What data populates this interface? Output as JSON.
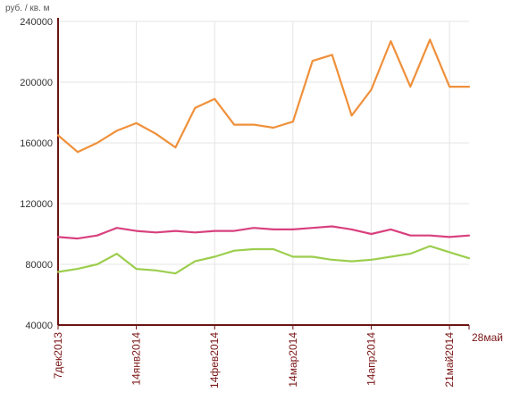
{
  "chart_data": {
    "type": "line",
    "unit_label": "руб. / кв. м",
    "y_ticks": [
      "240000",
      "200000",
      "160000",
      "120000",
      "80000",
      "40000"
    ],
    "y_tick_values": [
      240000,
      200000,
      160000,
      120000,
      80000,
      40000
    ],
    "ylim": [
      40000,
      240000
    ],
    "x_ticks": [
      {
        "label": "7дек2013",
        "index": 0
      },
      {
        "label": "14янв2014",
        "index": 4
      },
      {
        "label": "14фев2014",
        "index": 8
      },
      {
        "label": "14мар2014",
        "index": 12
      },
      {
        "label": "14апр2014",
        "index": 16
      },
      {
        "label": "21май2014",
        "index": 20
      },
      {
        "label": "28май",
        "index": 21
      }
    ],
    "point_count": 22,
    "grid": true,
    "series": [
      {
        "color": "#f0903a",
        "values": [
          165000,
          154000,
          160000,
          168000,
          173000,
          166000,
          157000,
          183000,
          189000,
          172000,
          172000,
          170000,
          174000,
          214000,
          218000,
          178000,
          195000,
          227000,
          197000,
          228000,
          197000,
          197000
        ]
      },
      {
        "color": "#d9407e",
        "values": [
          98000,
          97000,
          99000,
          104000,
          102000,
          101000,
          102000,
          101000,
          102000,
          102000,
          104000,
          103000,
          103000,
          104000,
          105000,
          103000,
          100000,
          103000,
          99000,
          99000,
          98000,
          99000
        ]
      },
      {
        "color": "#9cce4e",
        "values": [
          75000,
          77000,
          80000,
          87000,
          77000,
          76000,
          74000,
          82000,
          85000,
          89000,
          90000,
          90000,
          85000,
          85000,
          83000,
          82000,
          83000,
          85000,
          87000,
          92000,
          88000,
          84000
        ]
      }
    ]
  }
}
